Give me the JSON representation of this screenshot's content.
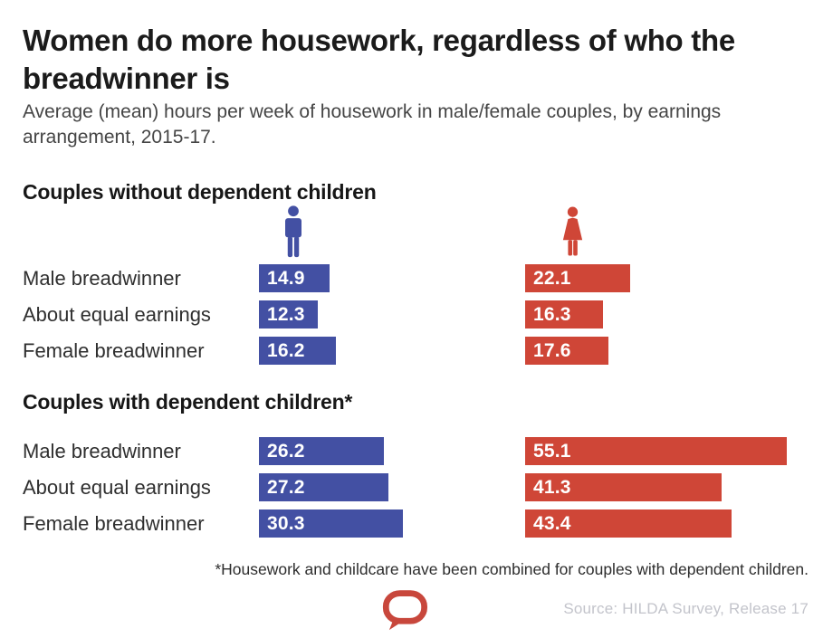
{
  "header": {
    "title": "Women do more housework, regardless of who the breadwinner is",
    "subtitle": "Average (mean) hours per week of housework in male/female couples, by earnings arrangement, 2015-17."
  },
  "chart_data": {
    "type": "bar",
    "orientation": "horizontal",
    "value_unit": "mean hours of housework per week",
    "xlim": [
      0,
      60
    ],
    "legend": [
      {
        "name": "Men",
        "icon": "male-pictogram",
        "color": "#4350a3"
      },
      {
        "name": "Women",
        "icon": "female-pictogram",
        "color": "#cf4637"
      }
    ],
    "categories": [
      "Male breadwinner",
      "About equal earnings",
      "Female breadwinner"
    ],
    "groups": [
      {
        "label": "Couples without dependent children",
        "series": [
          {
            "name": "Men",
            "values": [
              14.9,
              12.3,
              16.2
            ]
          },
          {
            "name": "Women",
            "values": [
              22.1,
              16.3,
              17.6
            ]
          }
        ]
      },
      {
        "label": "Couples with dependent children*",
        "series": [
          {
            "name": "Men",
            "values": [
              26.2,
              27.2,
              30.3
            ]
          },
          {
            "name": "Women",
            "values": [
              55.1,
              41.3,
              43.4
            ]
          }
        ]
      }
    ]
  },
  "footer": {
    "footnote": "*Housework and childcare have been combined for couples with dependent children.",
    "source": "Source: HILDA Survey, Release 17",
    "logo": "speech-bubble-logo"
  },
  "colors": {
    "men_bar": "#4350a3",
    "women_bar": "#cf4637",
    "title_text": "#1b1b1b",
    "body_text": "#454545",
    "source_text": "#c3c4cb",
    "logo_red": "#c8473c",
    "background": "#ffffff"
  }
}
